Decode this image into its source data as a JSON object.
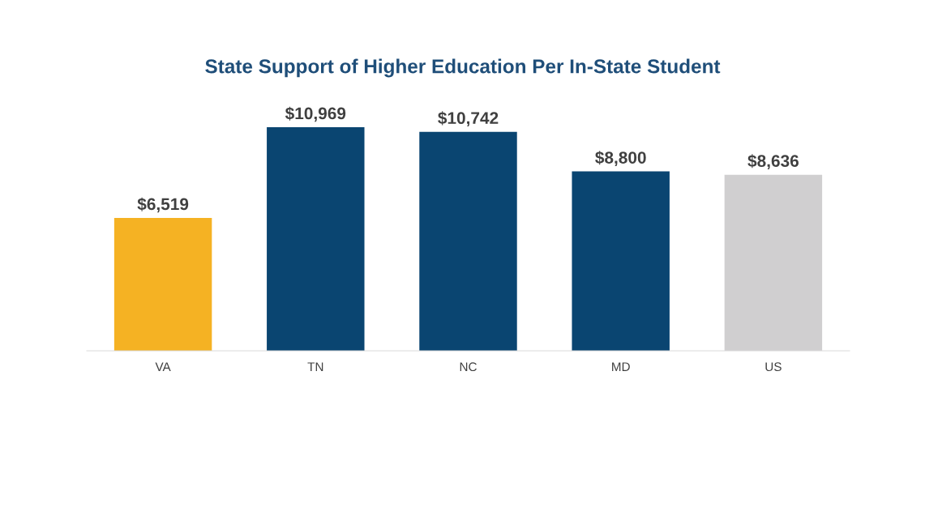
{
  "chart_data": {
    "type": "bar",
    "title": "State Support of Higher Education Per In-State Student",
    "categories": [
      "VA",
      "TN",
      "NC",
      "MD",
      "US"
    ],
    "values": [
      6519,
      10969,
      10742,
      8800,
      8636
    ],
    "colors": [
      "#f5b223",
      "#0a4571",
      "#0a4571",
      "#0a4571",
      "#d0cfd0"
    ],
    "value_labels": [
      "$6,519",
      "$10,969",
      "$10,742",
      "$8,800",
      "$8,636"
    ],
    "grid": false,
    "legend": false
  }
}
